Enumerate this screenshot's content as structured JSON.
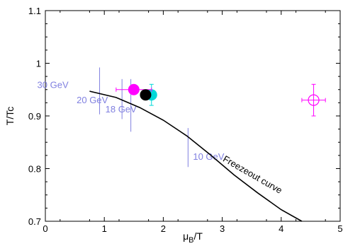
{
  "chart_data": {
    "type": "scatter",
    "xlim": [
      0,
      5
    ],
    "ylim": [
      0.7,
      1.1
    ],
    "x_ticks": [
      0,
      1,
      2,
      3,
      4,
      5
    ],
    "y_ticks": [
      0.7,
      0.8,
      0.9,
      1,
      1.1
    ],
    "x_tick_labels": [
      "0",
      "1",
      "2",
      "3",
      "4",
      "5"
    ],
    "y_tick_labels": [
      "0.7",
      "0.8",
      "0.9",
      "1",
      "1.1"
    ],
    "xlabel_main": "μ",
    "xlabel_sub": "B",
    "xlabel_tail": "/T",
    "ylabel": "T/Tc",
    "grid": false,
    "colors": {
      "magenta": "#ff00ff",
      "black": "#000000",
      "cyan": "#00d8d8",
      "energy_lines": "#8080e0",
      "curve": "#000000"
    },
    "freezeout_curve": {
      "label": "Freezeout curve",
      "x": [
        0.75,
        1.2,
        1.6,
        2.0,
        2.4,
        2.8,
        3.2,
        3.6,
        4.0,
        4.35
      ],
      "y": [
        0.947,
        0.935,
        0.916,
        0.892,
        0.862,
        0.826,
        0.788,
        0.754,
        0.722,
        0.7
      ]
    },
    "energy_markers": [
      {
        "label": "30 GeV",
        "x": 0.92,
        "y_low": 0.903,
        "y_high": 0.992
      },
      {
        "label": "20 GeV",
        "x": 1.3,
        "y_low": 0.894,
        "y_high": 0.97
      },
      {
        "label": "18 GeV",
        "x": 1.45,
        "y_low": 0.87,
        "y_high": 0.97
      },
      {
        "label": "10 GeV",
        "x": 2.42,
        "y_low": 0.803,
        "y_high": 0.877
      }
    ],
    "points": [
      {
        "name": "cyan-filled",
        "x": 1.8,
        "y": 0.94,
        "xerr": 0.08,
        "yerr": 0.02,
        "color": "cyan",
        "filled": true
      },
      {
        "name": "magenta-filled",
        "x": 1.5,
        "y": 0.95,
        "xerr": 0.3,
        "yerr": 0.0,
        "color": "magenta",
        "filled": true
      },
      {
        "name": "black-filled",
        "x": 1.7,
        "y": 0.94,
        "xerr": 0.0,
        "yerr": 0.0,
        "color": "black",
        "filled": true
      },
      {
        "name": "magenta-open",
        "x": 4.55,
        "y": 0.93,
        "xerr": 0.2,
        "yerr": 0.03,
        "color": "magenta",
        "filled": false
      }
    ]
  }
}
